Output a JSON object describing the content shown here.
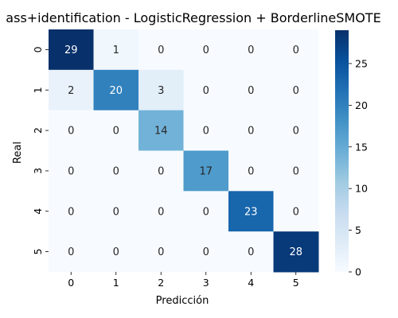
{
  "chart_data": {
    "type": "heatmap",
    "title": "ass+identification - LogisticRegression + BorderlineSMOTE",
    "xlabel": "Predicción",
    "ylabel": "Real",
    "x_categories": [
      "0",
      "1",
      "2",
      "3",
      "4",
      "5"
    ],
    "y_categories": [
      "0",
      "1",
      "2",
      "3",
      "4",
      "5"
    ],
    "matrix": [
      [
        29,
        1,
        0,
        0,
        0,
        0
      ],
      [
        2,
        20,
        3,
        0,
        0,
        0
      ],
      [
        0,
        0,
        14,
        0,
        0,
        0
      ],
      [
        0,
        0,
        0,
        17,
        0,
        0
      ],
      [
        0,
        0,
        0,
        0,
        23,
        0
      ],
      [
        0,
        0,
        0,
        0,
        0,
        28
      ]
    ],
    "colorbar": {
      "min": 0,
      "max": 29,
      "ticks": [
        0,
        5,
        10,
        15,
        20,
        25
      ],
      "colormap": "Blues"
    }
  }
}
